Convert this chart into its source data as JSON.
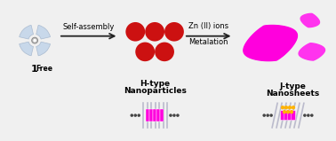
{
  "bg_color": "#f0f0f0",
  "arrow1_label": "Self-assembly",
  "arrow2_label_top": "Zn (II) ions",
  "arrow2_label_bot": "Metalation",
  "molecule_label": "1",
  "molecule_sublabel": "Free",
  "htype_label1": "H-type",
  "htype_label2": "Nanoparticles",
  "jtype_label1": "J-type",
  "jtype_label2": "Nanosheets",
  "dark_red": "#CC1111",
  "magenta_bright": "#FF00DD",
  "magenta_mid": "#FF33EE",
  "orange_dot": "#FFB300",
  "gray_line": "#BBBBCC",
  "arrow_color": "#222222",
  "blade_color": "#C8D8EA",
  "blade_edge": "#AABBD0",
  "center_gray": "#AAAAAA",
  "dot_color": "#444444"
}
